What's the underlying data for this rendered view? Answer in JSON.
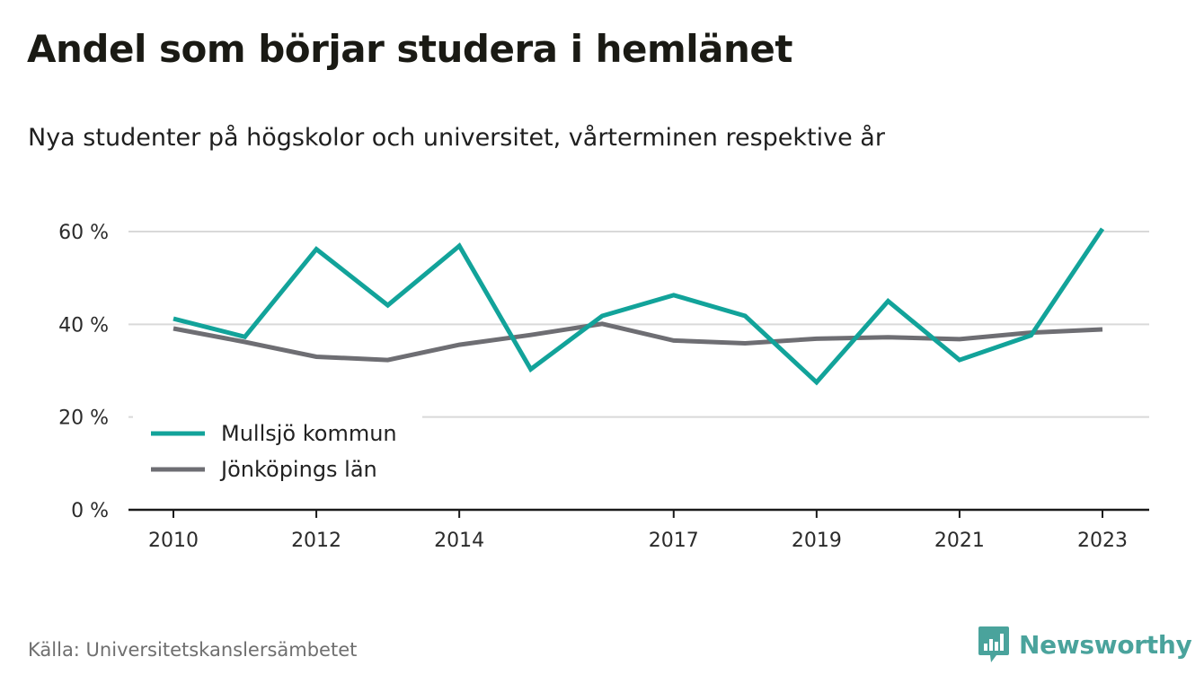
{
  "header": {
    "title": "Andel som börjar studera i hemlänet",
    "subtitle": "Nya studenter på högskolor och universitet, vårterminen respektive år"
  },
  "footer": {
    "source": "Källa: Universitetskanslersämbetet",
    "brand": "Newsworthy",
    "brand_icon": "bar-chart-speech-bubble-icon"
  },
  "colors": {
    "series_primary": "#12a39a",
    "series_secondary": "#6e6e73",
    "grid": "#d9d9d9",
    "axis": "#1a1a1a",
    "brand": "#4aa39c"
  },
  "chart_data": {
    "type": "line",
    "x": [
      2010,
      2011,
      2012,
      2013,
      2014,
      2015,
      2016,
      2017,
      2018,
      2019,
      2020,
      2021,
      2022,
      2023
    ],
    "x_tick_labels": [
      "2010",
      "2012",
      "2014",
      "2017",
      "2019",
      "2021",
      "2023"
    ],
    "y_tick_labels": [
      "0 %",
      "20 %",
      "40 %",
      "60 %"
    ],
    "y_ticks": [
      0,
      20,
      40,
      60
    ],
    "ylim": [
      0,
      60
    ],
    "grid": true,
    "legend_position": "bottom-left",
    "series": [
      {
        "name": "Mullsjö kommun",
        "values": [
          41.2,
          37.3,
          56.2,
          44.1,
          56.9,
          30.3,
          41.8,
          46.3,
          41.8,
          27.5,
          45.0,
          32.3,
          37.6,
          60.6
        ]
      },
      {
        "name": "Jönköpings län",
        "values": [
          39.1,
          36.2,
          33.0,
          32.3,
          35.6,
          37.7,
          40.1,
          36.5,
          35.9,
          36.9,
          37.2,
          36.8,
          38.2,
          38.9
        ]
      }
    ]
  }
}
